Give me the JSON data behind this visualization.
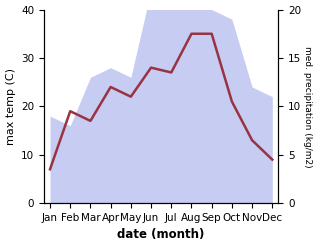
{
  "months": [
    "Jan",
    "Feb",
    "Mar",
    "Apr",
    "May",
    "Jun",
    "Jul",
    "Aug",
    "Sep",
    "Oct",
    "Nov",
    "Dec"
  ],
  "x": [
    0,
    1,
    2,
    3,
    4,
    5,
    6,
    7,
    8,
    9,
    10,
    11
  ],
  "temp": [
    7,
    19,
    17,
    24,
    22,
    28,
    27,
    35,
    35,
    21,
    13,
    9
  ],
  "precip_raw": [
    9,
    8,
    13,
    14,
    13,
    22,
    21,
    23,
    20,
    19,
    12,
    11
  ],
  "temp_color": "#993344",
  "precip_color": "#b3bcee",
  "precip_alpha": 0.75,
  "bg_color": "#ffffff",
  "xlabel": "date (month)",
  "ylabel_left": "max temp (C)",
  "ylabel_right": "med. precipitation (kg/m2)",
  "ylim_left": [
    0,
    40
  ],
  "ylim_right": [
    0,
    20
  ],
  "xlim": [
    -0.3,
    11.3
  ],
  "tick_fontsize": 7.5,
  "label_fontsize": 8.5,
  "line_width": 1.8
}
